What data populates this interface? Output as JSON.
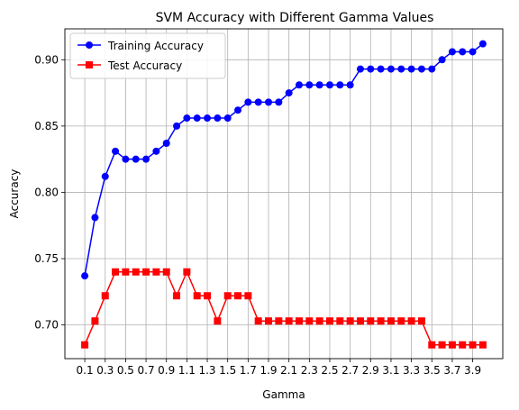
{
  "chart_data": {
    "type": "line",
    "title": "SVM Accuracy with Different Gamma Values",
    "xlabel": "Gamma",
    "ylabel": "Accuracy",
    "xlim": [
      -0.095,
      4.195
    ],
    "ylim": [
      0.6746,
      0.9233
    ],
    "grid": true,
    "legend_position": "top-left",
    "x_ticks": [
      0.1,
      0.3,
      0.5,
      0.7,
      0.9,
      1.1,
      1.3,
      1.5,
      1.7,
      1.9,
      2.1,
      2.3,
      2.5,
      2.7,
      2.9,
      3.1,
      3.3,
      3.5,
      3.7,
      3.9
    ],
    "x_tick_labels": [
      "0.1",
      "0.3",
      "0.5",
      "0.7",
      "0.9",
      "1.1",
      "1.3",
      "1.5",
      "1.7",
      "1.9",
      "2.1",
      "2.3",
      "2.5",
      "2.7",
      "2.9",
      "3.1",
      "3.3",
      "3.5",
      "3.7",
      "3.9"
    ],
    "y_ticks": [
      0.7,
      0.75,
      0.8,
      0.85,
      0.9
    ],
    "y_tick_labels": [
      "0.70",
      "0.75",
      "0.80",
      "0.85",
      "0.90"
    ],
    "x": [
      0.1,
      0.2,
      0.3,
      0.4,
      0.5,
      0.6,
      0.7,
      0.8,
      0.9,
      1.0,
      1.1,
      1.2,
      1.3,
      1.4,
      1.5,
      1.6,
      1.7,
      1.8,
      1.9,
      2.0,
      2.1,
      2.2,
      2.3,
      2.4,
      2.5,
      2.6,
      2.7,
      2.8,
      2.9,
      3.0,
      3.1,
      3.2,
      3.3,
      3.4,
      3.5,
      3.6,
      3.7,
      3.8,
      3.9,
      4.0
    ],
    "series": [
      {
        "name": "Training Accuracy",
        "color": "#0000ff",
        "marker": "circle",
        "values": [
          0.737,
          0.781,
          0.812,
          0.831,
          0.825,
          0.825,
          0.825,
          0.831,
          0.837,
          0.85,
          0.856,
          0.856,
          0.856,
          0.856,
          0.856,
          0.862,
          0.868,
          0.868,
          0.868,
          0.868,
          0.875,
          0.881,
          0.881,
          0.881,
          0.881,
          0.881,
          0.881,
          0.893,
          0.893,
          0.893,
          0.893,
          0.893,
          0.893,
          0.893,
          0.893,
          0.9,
          0.906,
          0.906,
          0.906,
          0.912
        ]
      },
      {
        "name": "Test Accuracy",
        "color": "#ff0000",
        "marker": "square",
        "values": [
          0.685,
          0.703,
          0.722,
          0.74,
          0.74,
          0.74,
          0.74,
          0.74,
          0.74,
          0.722,
          0.74,
          0.722,
          0.722,
          0.703,
          0.722,
          0.722,
          0.722,
          0.703,
          0.703,
          0.703,
          0.703,
          0.703,
          0.703,
          0.703,
          0.703,
          0.703,
          0.703,
          0.703,
          0.703,
          0.703,
          0.703,
          0.703,
          0.703,
          0.703,
          0.685,
          0.685,
          0.685,
          0.685,
          0.685,
          0.685
        ]
      }
    ]
  }
}
